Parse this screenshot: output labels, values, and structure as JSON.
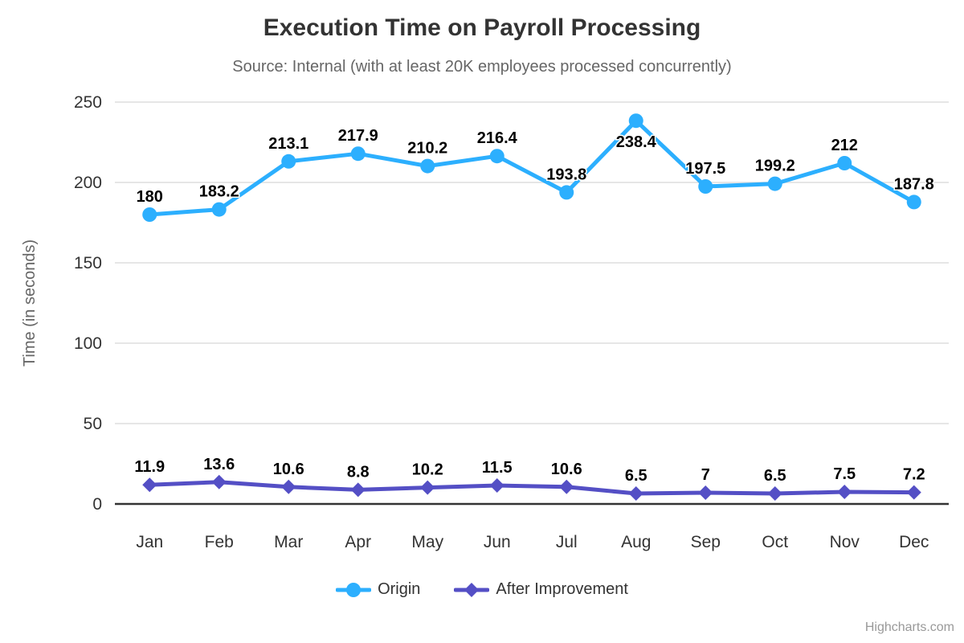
{
  "title": "Execution Time on Payroll Processing",
  "subtitle": "Source: Internal (with at least 20K employees processed concurrently)",
  "credits_label": "Highcharts.com",
  "colors": {
    "series_origin": "#2CAFFE",
    "series_after_improvement": "#544FC5",
    "grid_line": "#E6E6E6",
    "axis_line": "#333333",
    "title_text": "#333333",
    "muted_text": "#666666",
    "tick_text": "#333333",
    "data_label_text": "#000000",
    "credits_text": "#999999"
  },
  "chart_data": {
    "type": "line",
    "title": "Execution Time on Payroll Processing",
    "subtitle": "Source: Internal (with at least 20K employees processed concurrently)",
    "xlabel": "",
    "ylabel": "Time (in seconds)",
    "ylim": [
      0,
      250
    ],
    "yticks": [
      0,
      50,
      100,
      150,
      200,
      250
    ],
    "grid": true,
    "legend_position": "bottom",
    "categories": [
      "Jan",
      "Feb",
      "Mar",
      "Apr",
      "May",
      "Jun",
      "Jul",
      "Aug",
      "Sep",
      "Oct",
      "Nov",
      "Dec"
    ],
    "series": [
      {
        "name": "Origin",
        "marker": "circle",
        "color": "#2CAFFE",
        "values": [
          180,
          183.2,
          213.1,
          217.9,
          210.2,
          216.4,
          193.8,
          238.4,
          197.5,
          199.2,
          212,
          187.8
        ],
        "labels_below_indices": [
          7
        ]
      },
      {
        "name": "After Improvement",
        "marker": "diamond",
        "color": "#544FC5",
        "values": [
          11.9,
          13.6,
          10.6,
          8.8,
          10.2,
          11.5,
          10.6,
          6.5,
          7,
          6.5,
          7.5,
          7.2
        ],
        "labels_below_indices": []
      }
    ]
  }
}
